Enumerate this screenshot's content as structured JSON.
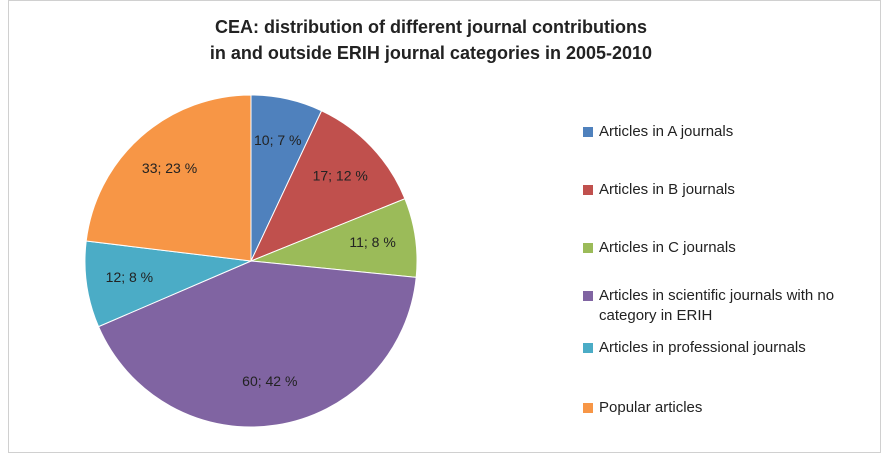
{
  "chart_data": {
    "type": "pie",
    "title": [
      "CEA: distribution of different journal contributions",
      "in and outside ERIH journal categories in 2005-2010"
    ],
    "categories": [
      "Articles in A journals",
      "Articles in B journals",
      "Articles in C journals",
      "Articles in scientific journals with no category in ERIH",
      "Articles in professional journals",
      "Popular articles"
    ],
    "values": [
      10,
      17,
      11,
      60,
      12,
      33
    ],
    "value_labels": [
      "10; 7 %",
      "17; 12 %",
      "11; 8 %",
      "60; 42 %",
      "12; 8 %",
      "33; 23 %"
    ],
    "colors": [
      "#4f81bd",
      "#c0504d",
      "#9bbb59",
      "#8064a2",
      "#4bacc6",
      "#f79646"
    ],
    "legend": "right"
  }
}
